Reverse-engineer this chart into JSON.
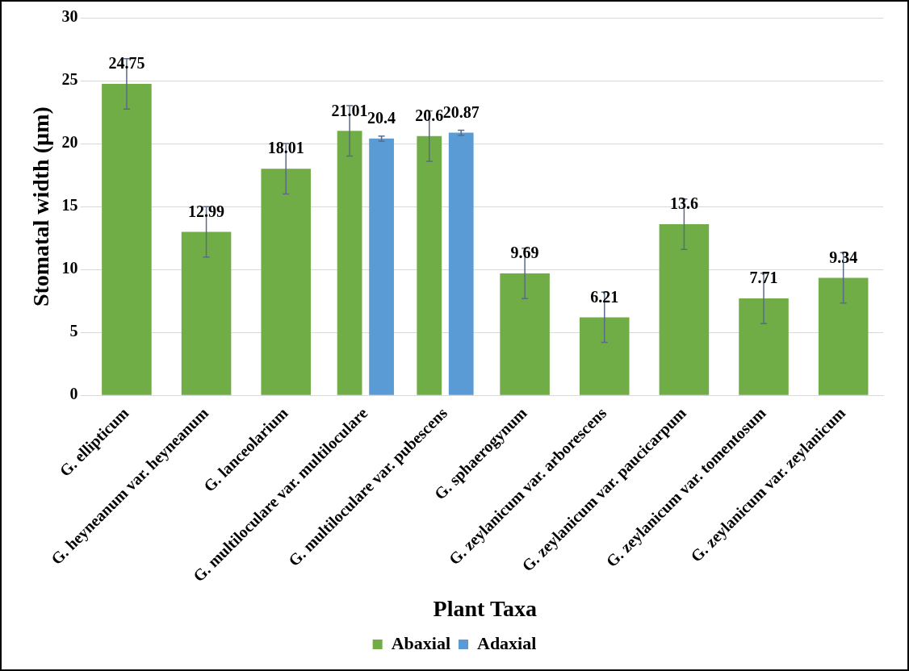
{
  "chart_data": {
    "type": "bar",
    "xlabel": "Plant Taxa",
    "ylabel": "Stomatal width (µm)",
    "categories": [
      "G. ellipticum",
      "G. heyneanum var. heyneanum",
      "G. lanceolarium",
      "G. multiloculare var. multiloculare",
      "G. multiloculare var. pubescens",
      "G. sphaerogynum",
      "G. zeylanicum var. arborescens",
      "G. zeylanicum var. paucicarpum",
      "G. zeylanicum var. tomentosum",
      "G. zeylanicum var. zeylanicum"
    ],
    "series": [
      {
        "name": "Abaxial",
        "color": "#70ad47",
        "values": [
          24.75,
          12.99,
          18.01,
          21.01,
          20.6,
          9.69,
          6.21,
          13.6,
          7.71,
          9.34
        ],
        "errors": [
          2,
          2,
          2,
          2,
          2,
          2,
          2,
          2,
          2,
          2
        ]
      },
      {
        "name": "Adaxial",
        "color": "#5b9bd5",
        "values": [
          null,
          null,
          null,
          20.4,
          20.87,
          null,
          null,
          null,
          null,
          null
        ],
        "errors": [
          null,
          null,
          null,
          0.2,
          0.2,
          null,
          null,
          null,
          null,
          null
        ]
      }
    ],
    "ylim": [
      0,
      30
    ],
    "yticks": [
      0,
      5,
      10,
      15,
      20,
      25,
      30
    ],
    "grid": "y",
    "legend": "bottom",
    "data_labels": true
  }
}
